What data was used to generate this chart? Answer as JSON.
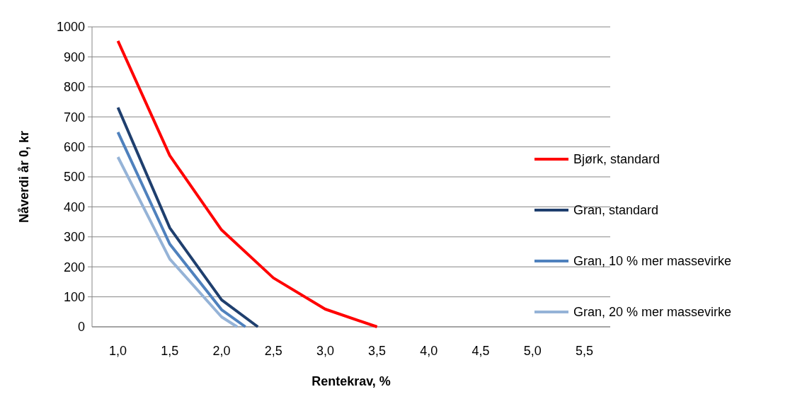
{
  "chart_data": {
    "type": "line",
    "xlabel": "Rentekrav, %",
    "ylabel": "Nåverdi år 0, kr",
    "xlim": [
      0.75,
      5.75
    ],
    "xticks": [
      {
        "value": 1,
        "label": "1,0"
      },
      {
        "value": 1.5,
        "label": "1,5"
      },
      {
        "value": 2,
        "label": "2,0"
      },
      {
        "value": 2.5,
        "label": "2,5"
      },
      {
        "value": 3,
        "label": "3,0"
      },
      {
        "value": 3.5,
        "label": "3,5"
      },
      {
        "value": 4,
        "label": "4,0"
      },
      {
        "value": 4.5,
        "label": "4,5"
      },
      {
        "value": 5,
        "label": "5,0"
      },
      {
        "value": 5.5,
        "label": "5,5"
      }
    ],
    "ylim": [
      0,
      1000
    ],
    "yticks": [
      0,
      100,
      200,
      300,
      400,
      500,
      600,
      700,
      800,
      900,
      1000
    ],
    "grid": "y",
    "legend": "right",
    "series": [
      {
        "name": "Bjørk, standard",
        "color": "#ff0000",
        "x": [
          1,
          1.5,
          2,
          2.5,
          3,
          3.5
        ],
        "values": [
          953,
          571,
          323,
          163,
          59,
          0
        ]
      },
      {
        "name": "Gran, standard",
        "color": "#1f3f6e",
        "x": [
          1,
          1.5,
          2,
          2.35
        ],
        "values": [
          731,
          330,
          90,
          0
        ]
      },
      {
        "name": "Gran, 10 % mer massevirke",
        "color": "#4f81bd",
        "x": [
          1,
          1.5,
          2,
          2.23
        ],
        "values": [
          649,
          276,
          57,
          0
        ]
      },
      {
        "name": "Gran, 20 % mer massevirke",
        "color": "#95b3d7",
        "x": [
          1,
          1.5,
          2,
          2.15
        ],
        "values": [
          566,
          226,
          33,
          0
        ]
      }
    ]
  }
}
